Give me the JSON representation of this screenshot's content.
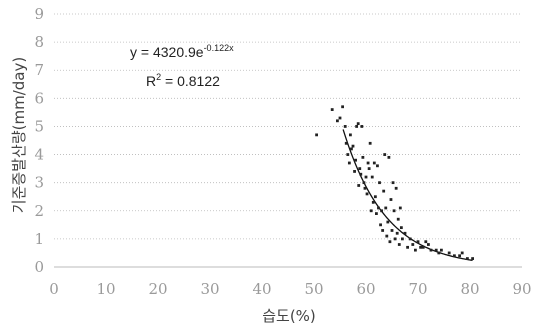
{
  "chart_data": {
    "type": "scatter",
    "xlabel": "습도(%)",
    "ylabel": "기준증발산량(mm/day)",
    "xlim": [
      0,
      90
    ],
    "ylim": [
      0,
      9
    ],
    "x_ticks": [
      "0",
      "10",
      "20",
      "30",
      "40",
      "50",
      "60",
      "70",
      "80",
      "90"
    ],
    "y_ticks": [
      "0",
      "1",
      "2",
      "3",
      "4",
      "5",
      "6",
      "7",
      "8",
      "9"
    ],
    "grid": "horizontal",
    "equation": {
      "prefix": "y = 4320.9e",
      "exponent": "-0.122x",
      "r2_label": "R",
      "r2_sup": "2",
      "r2_value": " = 0.8122"
    },
    "trendline": {
      "type": "exponential",
      "a": 4320.9,
      "b": -0.122,
      "x_from": 55.6,
      "x_to": 80.5
    },
    "points": [
      [
        50.5,
        4.7
      ],
      [
        53.5,
        5.6
      ],
      [
        54.5,
        5.2
      ],
      [
        55.0,
        5.3
      ],
      [
        55.5,
        5.7
      ],
      [
        56.0,
        5.0
      ],
      [
        56.2,
        4.4
      ],
      [
        56.5,
        4.0
      ],
      [
        56.8,
        3.7
      ],
      [
        57.0,
        4.7
      ],
      [
        57.2,
        4.2
      ],
      [
        57.5,
        4.3
      ],
      [
        57.8,
        3.4
      ],
      [
        58.0,
        3.8
      ],
      [
        58.2,
        5.0
      ],
      [
        58.5,
        5.1
      ],
      [
        58.6,
        2.9
      ],
      [
        58.8,
        3.5
      ],
      [
        59.0,
        3.3
      ],
      [
        59.2,
        5.0
      ],
      [
        59.4,
        3.9
      ],
      [
        59.6,
        3.0
      ],
      [
        59.8,
        2.8
      ],
      [
        60.0,
        3.2
      ],
      [
        60.2,
        2.6
      ],
      [
        60.4,
        3.7
      ],
      [
        60.6,
        3.5
      ],
      [
        60.8,
        4.4
      ],
      [
        61.0,
        2.0
      ],
      [
        61.2,
        3.2
      ],
      [
        61.4,
        2.3
      ],
      [
        61.6,
        3.7
      ],
      [
        61.8,
        2.5
      ],
      [
        62.0,
        1.9
      ],
      [
        62.2,
        3.6
      ],
      [
        62.4,
        2.1
      ],
      [
        62.6,
        3.0
      ],
      [
        62.8,
        1.5
      ],
      [
        63.0,
        2.0
      ],
      [
        63.2,
        1.3
      ],
      [
        63.4,
        2.7
      ],
      [
        63.6,
        4.0
      ],
      [
        63.8,
        2.1
      ],
      [
        64.0,
        1.1
      ],
      [
        64.2,
        1.6
      ],
      [
        64.4,
        3.9
      ],
      [
        64.6,
        0.9
      ],
      [
        64.8,
        2.4
      ],
      [
        65.0,
        1.3
      ],
      [
        65.2,
        3.0
      ],
      [
        65.4,
        2.0
      ],
      [
        65.6,
        1.0
      ],
      [
        65.8,
        2.8
      ],
      [
        66.0,
        1.2
      ],
      [
        66.2,
        1.7
      ],
      [
        66.4,
        0.8
      ],
      [
        66.6,
        2.1
      ],
      [
        66.8,
        1.4
      ],
      [
        67.0,
        1.0
      ],
      [
        67.5,
        1.2
      ],
      [
        68.0,
        0.7
      ],
      [
        68.5,
        1.0
      ],
      [
        69.0,
        0.8
      ],
      [
        69.5,
        0.6
      ],
      [
        70.0,
        0.9
      ],
      [
        70.5,
        0.7
      ],
      [
        71.0,
        0.7
      ],
      [
        71.5,
        0.9
      ],
      [
        72.0,
        0.8
      ],
      [
        72.5,
        0.6
      ],
      [
        73.5,
        0.6
      ],
      [
        74.0,
        0.5
      ],
      [
        74.5,
        0.6
      ],
      [
        76.0,
        0.5
      ],
      [
        77.0,
        0.4
      ],
      [
        78.0,
        0.4
      ],
      [
        78.5,
        0.5
      ],
      [
        79.5,
        0.3
      ],
      [
        80.5,
        0.3
      ]
    ],
    "colors": {
      "points": "#222222",
      "trendline": "#111111",
      "grid": "#b8b8b8",
      "tick_text": "#9a9a9a"
    }
  }
}
